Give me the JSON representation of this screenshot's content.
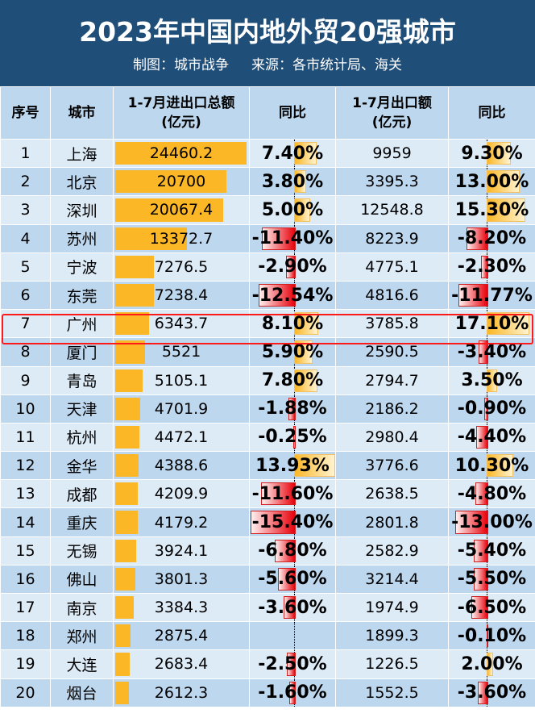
{
  "title": "2023年中国内地外贸20强城市",
  "credit": "制图：城市战争",
  "source": "来源：各市统计局、海关",
  "chart_data": {
    "type": "table",
    "headers": [
      "序号",
      "城市",
      "1-7月进出口总额\n(亿元)",
      "同比",
      "1-7月出口额\n(亿元)",
      "同比"
    ],
    "highlight_row": "广州",
    "colors": {
      "bar": "#fbb726",
      "positive": "#fbb726",
      "negative": "#e8000a",
      "header": "#1f4e79"
    },
    "rows": [
      [
        "1",
        "上海",
        24460.2,
        "7.40%",
        9959,
        "9.30%"
      ],
      [
        "2",
        "北京",
        20700,
        "3.80%",
        3395.3,
        "13.00%"
      ],
      [
        "3",
        "深圳",
        20067.4,
        "5.00%",
        12548.8,
        "15.30%"
      ],
      [
        "4",
        "苏州",
        13372.7,
        "-11.40%",
        8223.9,
        "-8.20%"
      ],
      [
        "5",
        "宁波",
        7276.5,
        "-2.90%",
        4775.1,
        "-2.30%"
      ],
      [
        "6",
        "东莞",
        7238.4,
        "-12.54%",
        4816.6,
        "-11.77%"
      ],
      [
        "7",
        "广州",
        6343.7,
        "8.10%",
        3785.8,
        "17.10%"
      ],
      [
        "8",
        "厦门",
        5521,
        "5.90%",
        2590.5,
        "-3.40%"
      ],
      [
        "9",
        "青岛",
        5105.1,
        "7.80%",
        2794.7,
        "3.50%"
      ],
      [
        "10",
        "天津",
        4701.9,
        "-1.88%",
        2186.2,
        "-0.90%"
      ],
      [
        "11",
        "杭州",
        4472.1,
        "-0.25%",
        2980.4,
        "-4.40%"
      ],
      [
        "12",
        "金华",
        4388.6,
        "13.93%",
        3776.6,
        "10.30%"
      ],
      [
        "13",
        "成都",
        4209.9,
        "-11.60%",
        2638.5,
        "-4.80%"
      ],
      [
        "14",
        "重庆",
        4179.2,
        "-15.40%",
        2801.8,
        "-13.00%"
      ],
      [
        "15",
        "无锡",
        3924.1,
        "-6.80%",
        2582.9,
        "-5.40%"
      ],
      [
        "16",
        "佛山",
        3801.3,
        "-5.60%",
        3214.4,
        "-5.50%"
      ],
      [
        "17",
        "南京",
        3384.3,
        "-3.60%",
        1974.9,
        "-6.50%"
      ],
      [
        "18",
        "郑州",
        2875.4,
        "",
        1899.3,
        "-0.10%"
      ],
      [
        "19",
        "大连",
        2683.4,
        "-2.50%",
        1226.5,
        "2.00%"
      ],
      [
        "20",
        "烟台",
        2612.3,
        "-1.60%",
        1552.5,
        "-3.60%"
      ]
    ]
  }
}
